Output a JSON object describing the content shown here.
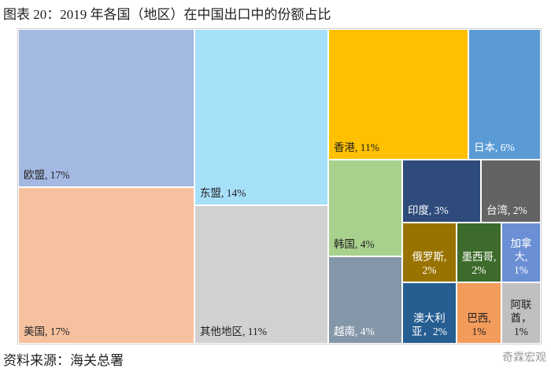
{
  "title": "图表 20：2019 年各国（地区）在中国出口中的份额占比",
  "source": "资料来源：海关总署",
  "watermark": "奇霖宏观",
  "chart_data": {
    "type": "treemap",
    "values": [
      17,
      17,
      14,
      11,
      11,
      6,
      4,
      4,
      3,
      2,
      2,
      2,
      1,
      2,
      1,
      1
    ],
    "value_labels": [
      "欧盟, 17%",
      "美国, 17%",
      "东盟, 14%",
      "其他地区, 11%",
      "香港, 11%",
      "日本, 6%",
      "韩国, 4%",
      "越南, 4%",
      "印度, 3%",
      "台湾, 2%",
      "俄罗斯,\n2%",
      "墨西哥,\n2%",
      "加拿\n大,\n1%",
      "澳大利\n亚，2%",
      "巴西,\n1%",
      "阿联\n酋，\n1%"
    ],
    "colors": [
      "#a4b9e2",
      "#f6c19f",
      "#a7e0f9",
      "#d1d1d1",
      "#ffc000",
      "#5b9bd5",
      "#a9d18e",
      "#8497a8",
      "#2f4b7c",
      "#636363",
      "#997300",
      "#3d6b2b",
      "#6b8fd4",
      "#265e91",
      "#f29b5b",
      "#c0c0c0"
    ]
  }
}
